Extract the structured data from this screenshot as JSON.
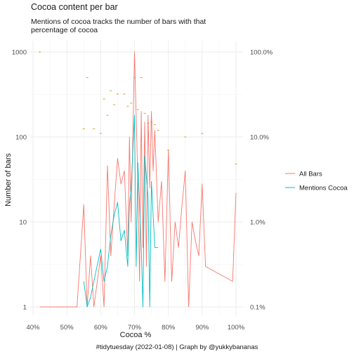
{
  "chart_data": {
    "type": "line",
    "title": "Cocoa content per bar",
    "subtitle": "Mentions of cocoa tracks the number of bars with that percentage of cocoa",
    "xlabel": "Cocoa %",
    "ylabel": "Number of bars",
    "caption": "#tidytuesday (2022-01-08) | Graph by @yukkybananas",
    "x_ticks": [
      "40%",
      "50%",
      "60%",
      "70%",
      "80%",
      "90%",
      "100%"
    ],
    "y_ticks": [
      "1",
      "10",
      "100",
      "1000"
    ],
    "y2_ticks": [
      "0.1%",
      "1.0%",
      "10.0%",
      "100.0%"
    ],
    "xlim": [
      40,
      100
    ],
    "ylim": [
      1,
      1000
    ],
    "y_scale": "log10",
    "grid": true,
    "legend_position": "right",
    "series": [
      {
        "name": "All Bars",
        "color": "#F8766D",
        "points": [
          [
            42,
            1
          ],
          [
            50,
            1
          ],
          [
            53,
            1
          ],
          [
            55,
            16
          ],
          [
            56,
            1
          ],
          [
            57,
            4
          ],
          [
            58,
            1
          ],
          [
            60,
            4
          ],
          [
            61,
            1
          ],
          [
            62,
            46
          ],
          [
            63,
            4
          ],
          [
            64,
            16
          ],
          [
            65,
            56
          ],
          [
            66,
            28
          ],
          [
            67,
            40
          ],
          [
            68,
            4
          ],
          [
            68.5,
            100
          ],
          [
            69,
            10
          ],
          [
            70,
            1000
          ],
          [
            71,
            30
          ],
          [
            71.5,
            2
          ],
          [
            72,
            200
          ],
          [
            72.5,
            5
          ],
          [
            73,
            150
          ],
          [
            73.5,
            3
          ],
          [
            74,
            180
          ],
          [
            74.5,
            25
          ],
          [
            75,
            200
          ],
          [
            75.5,
            40
          ],
          [
            76,
            120
          ],
          [
            77,
            10
          ],
          [
            78,
            30
          ],
          [
            79,
            2
          ],
          [
            80,
            70
          ],
          [
            81,
            2
          ],
          [
            82,
            10
          ],
          [
            83,
            5
          ],
          [
            84,
            15
          ],
          [
            85,
            40
          ],
          [
            86,
            1
          ],
          [
            87,
            10
          ],
          [
            88,
            6
          ],
          [
            89,
            4
          ],
          [
            90,
            28
          ],
          [
            91,
            3
          ],
          [
            99,
            2
          ],
          [
            100,
            22
          ]
        ]
      },
      {
        "name": "Mentions Cocoa",
        "color": "#00BFC4",
        "points": [
          [
            55,
            2
          ],
          [
            56,
            1
          ],
          [
            57,
            1.3
          ],
          [
            60,
            4.8
          ],
          [
            61,
            2
          ],
          [
            62,
            3
          ],
          [
            63,
            7
          ],
          [
            64,
            12
          ],
          [
            65,
            17
          ],
          [
            66,
            6
          ],
          [
            67,
            8
          ],
          [
            68,
            3
          ],
          [
            68.5,
            16
          ],
          [
            69,
            25
          ],
          [
            70,
            180
          ],
          [
            70.5,
            3
          ],
          [
            71,
            50
          ],
          [
            72,
            5
          ],
          [
            72.5,
            1
          ],
          [
            73,
            60
          ],
          [
            74,
            20
          ],
          [
            74.5,
            1
          ],
          [
            75,
            30
          ],
          [
            76,
            5
          ],
          [
            77,
            5
          ]
        ]
      }
    ],
    "annotations": [
      {
        "x": 42,
        "y": 1000
      },
      {
        "x": 55,
        "y": 125
      },
      {
        "x": 56,
        "y": 500
      },
      {
        "x": 58,
        "y": 125
      },
      {
        "x": 60,
        "y": 110
      },
      {
        "x": 61,
        "y": 280
      },
      {
        "x": 62,
        "y": 180
      },
      {
        "x": 63,
        "y": 350
      },
      {
        "x": 64,
        "y": 240
      },
      {
        "x": 65,
        "y": 320
      },
      {
        "x": 67,
        "y": 320
      },
      {
        "x": 68,
        "y": 230
      },
      {
        "x": 69,
        "y": 250
      },
      {
        "x": 70,
        "y": 500
      },
      {
        "x": 71,
        "y": 210
      },
      {
        "x": 72,
        "y": 500
      },
      {
        "x": 73,
        "y": 190
      },
      {
        "x": 74,
        "y": 145
      },
      {
        "x": 75,
        "y": 150
      },
      {
        "x": 76,
        "y": 140
      },
      {
        "x": 77,
        "y": 120
      },
      {
        "x": 80,
        "y": 70
      },
      {
        "x": 85,
        "y": 100
      },
      {
        "x": 90,
        "y": 110
      },
      {
        "x": 100,
        "y": 48
      }
    ],
    "annotation_color": "#C9A227"
  }
}
